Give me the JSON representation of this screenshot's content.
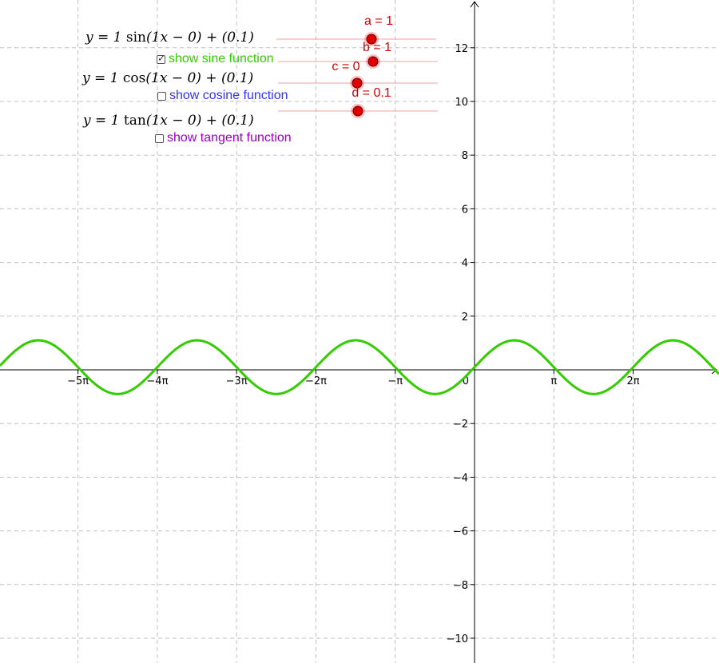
{
  "colors": {
    "sine": "#33cc00",
    "cosine": "#3333ff",
    "tangent": "#9900cc",
    "slider": "#e00000",
    "grid": "#c0c0c0",
    "axis": "#000000"
  },
  "formulas": {
    "sine": {
      "pre": "y = 1 ",
      "fn": "sin",
      "post": "(1x − 0) + (0.1)"
    },
    "cosine": {
      "pre": "y = 1 ",
      "fn": "cos",
      "post": "(1x − 0) + (0.1)"
    },
    "tangent": {
      "pre": "y = 1 ",
      "fn": "tan",
      "post": "(1x − 0) + (0.1)"
    }
  },
  "checkboxes": [
    {
      "id": "sine",
      "label": "show sine function",
      "checked": true
    },
    {
      "id": "cosine",
      "label": "show cosine function",
      "checked": false
    },
    {
      "id": "tangent",
      "label": "show tangent function",
      "checked": false
    }
  ],
  "sliders": [
    {
      "id": "a",
      "label": "a = 1",
      "value": 1
    },
    {
      "id": "b",
      "label": "b = 1",
      "value": 1
    },
    {
      "id": "c",
      "label": "c = 0",
      "value": 0
    },
    {
      "id": "d",
      "label": "d = 0.1",
      "value": 0.1
    }
  ],
  "chart_data": {
    "type": "line",
    "function": "y = 1·sin(1x − 0) + 0.1",
    "params": {
      "a": 1,
      "b": 1,
      "c": 0,
      "d": 0.1
    },
    "xlim": [
      -18.5,
      9.9
    ],
    "ylim": [
      -10.9,
      13.6
    ],
    "x_ticks": [
      {
        "value": -15.708,
        "label": "−5π"
      },
      {
        "value": -12.566,
        "label": "−4π"
      },
      {
        "value": -9.425,
        "label": "−3π"
      },
      {
        "value": -6.283,
        "label": "−2π"
      },
      {
        "value": -3.1416,
        "label": "−π"
      },
      {
        "value": 3.1416,
        "label": "π"
      },
      {
        "value": 6.283,
        "label": "2π"
      }
    ],
    "y_ticks": [
      {
        "value": 12,
        "label": "12"
      },
      {
        "value": 10,
        "label": "10"
      },
      {
        "value": 8,
        "label": "8"
      },
      {
        "value": 6,
        "label": "6"
      },
      {
        "value": 4,
        "label": "4"
      },
      {
        "value": 2,
        "label": "2"
      },
      {
        "value": -2,
        "label": "−2"
      },
      {
        "value": -4,
        "label": "−4"
      },
      {
        "value": -6,
        "label": "−6"
      },
      {
        "value": -8,
        "label": "−8"
      },
      {
        "value": -10,
        "label": "−10"
      }
    ],
    "origin_label": "0",
    "grid": true
  }
}
